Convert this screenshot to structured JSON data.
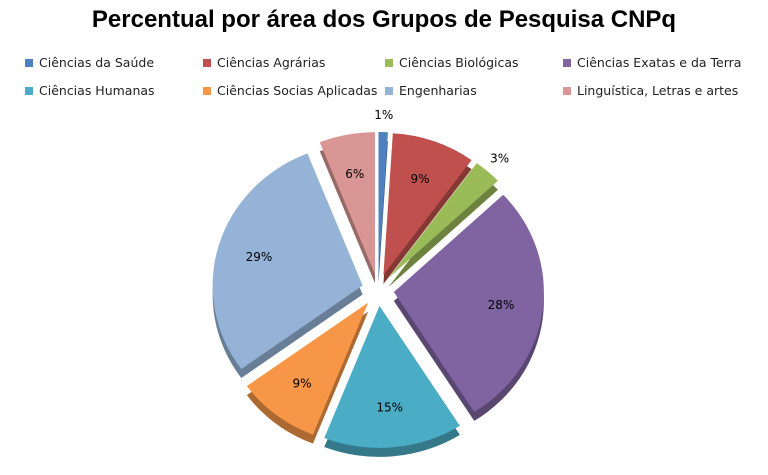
{
  "chart_data": {
    "type": "pie",
    "title": "Percentual por área dos Grupos de Pesquisa CNPq",
    "legend_placement": "top",
    "exploded": true,
    "categories": [
      "Ciências da Saúde",
      "Ciências Agrárias",
      "Ciências Biológicas",
      "Ciências Exatas e da Terra",
      "Ciências Humanas",
      "Ciências Socias  Aplicadas",
      "Engenharias",
      "Linguística, Letras e artes"
    ],
    "values": [
      1,
      9,
      3,
      28,
      15,
      9,
      29,
      6
    ],
    "labels": [
      "1%",
      "9%",
      "3%",
      "28%",
      "15%",
      "9%",
      "29%",
      "6%"
    ],
    "colors": [
      "#4F81BD",
      "#C0504D",
      "#9BBB59",
      "#8064A2",
      "#4BACC6",
      "#F79646",
      "#95B3D7",
      "#D99694"
    ]
  }
}
